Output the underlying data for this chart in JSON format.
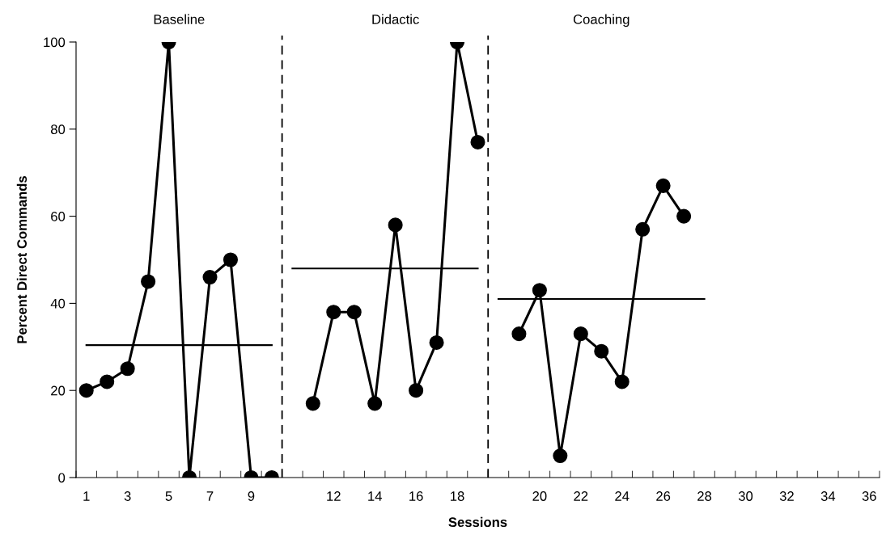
{
  "chart_data": {
    "type": "line",
    "xlabel": "Sessions",
    "ylabel": "Percent Direct Commands",
    "categories": [
      "1",
      null,
      "3",
      null,
      "5",
      null,
      "7",
      null,
      "9",
      null,
      null,
      null,
      "12",
      null,
      "14",
      null,
      "16",
      null,
      "18",
      null,
      null,
      null,
      "20",
      null,
      "22",
      null,
      "24",
      null,
      "26",
      null,
      "28",
      null,
      "30",
      null,
      "32",
      null,
      "34",
      null,
      "36"
    ],
    "series": [
      {
        "color": "#000000",
        "marker": "circle",
        "values": [
          20,
          22,
          25,
          45,
          100,
          0,
          46,
          50,
          0,
          0,
          null,
          null,
          null,
          null,
          null,
          null,
          null,
          null,
          null,
          null,
          null,
          null,
          null,
          null,
          null,
          null,
          null,
          null,
          null,
          null,
          null,
          null,
          null,
          null,
          null,
          null,
          null,
          null,
          null
        ]
      },
      {
        "color": "#000000",
        "marker": "circle",
        "values": [
          null,
          null,
          null,
          null,
          null,
          null,
          null,
          null,
          null,
          null,
          null,
          17,
          38,
          38,
          17,
          58,
          20,
          31,
          100,
          77,
          null,
          null,
          null,
          null,
          null,
          null,
          null,
          null,
          null,
          null,
          null,
          null,
          null,
          null,
          null,
          null,
          null,
          null,
          null
        ]
      },
      {
        "color": "#000000",
        "marker": "circle",
        "values": [
          null,
          null,
          null,
          null,
          null,
          null,
          null,
          null,
          null,
          null,
          null,
          null,
          null,
          null,
          null,
          null,
          null,
          null,
          null,
          null,
          null,
          33,
          43,
          5,
          33,
          29,
          22,
          57,
          67,
          60,
          null,
          null,
          null,
          null,
          null,
          null,
          null,
          null,
          null
        ]
      },
      {
        "color": "#000000",
        "marker": "none",
        "values": [
          30.4,
          30.4,
          30.4,
          30.4,
          30.4,
          30.4,
          30.4,
          30.4,
          30.4,
          30.4,
          null,
          null,
          null,
          null,
          null,
          null,
          null,
          null,
          null,
          null,
          null,
          null,
          null,
          null,
          null,
          null,
          null,
          null,
          null,
          null,
          null,
          null,
          null,
          null,
          null,
          null,
          null,
          null,
          null
        ]
      },
      {
        "color": "#000000",
        "marker": "none",
        "values": [
          null,
          null,
          null,
          null,
          null,
          null,
          null,
          null,
          null,
          null,
          48,
          48,
          48,
          48,
          48,
          48,
          48,
          48,
          48,
          48,
          null,
          null,
          null,
          null,
          null,
          null,
          null,
          null,
          null,
          null,
          null,
          null,
          null,
          null,
          null,
          null,
          null,
          null,
          null
        ]
      },
      {
        "color": "#000000",
        "marker": "none",
        "values": [
          null,
          null,
          null,
          null,
          null,
          null,
          null,
          null,
          null,
          null,
          null,
          null,
          null,
          null,
          null,
          null,
          null,
          null,
          null,
          null,
          41,
          41,
          41,
          41,
          41,
          41,
          41,
          41,
          41,
          41,
          41,
          null,
          null,
          null,
          null,
          null,
          null,
          null,
          null
        ]
      }
    ],
    "ylim": [
      0,
      100
    ],
    "yticks": [
      0,
      20,
      40,
      60,
      80,
      100
    ],
    "annotations": [
      "Baseline",
      "Didactic",
      "Coaching"
    ],
    "grid": false,
    "legend": false
  }
}
